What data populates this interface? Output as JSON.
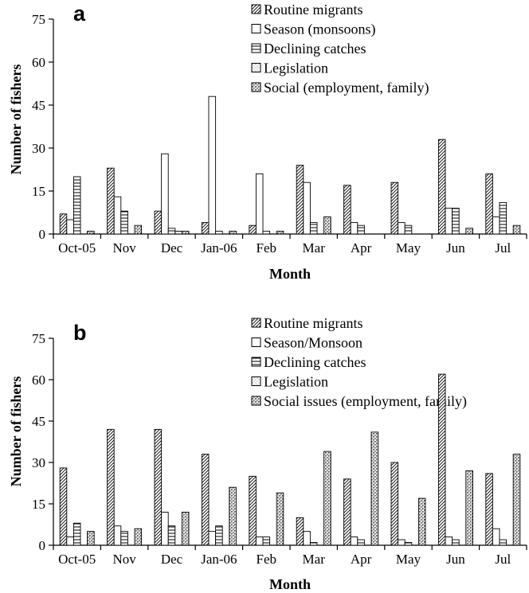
{
  "chart_data": [
    {
      "type": "bar",
      "panel_label": "a",
      "xlabel": "Month",
      "ylabel": "Number of fishers",
      "ylim": [
        0,
        75
      ],
      "yticks": [
        0,
        15,
        30,
        45,
        60,
        75
      ],
      "grid": false,
      "legend_position": "top",
      "categories": [
        "Oct-05",
        "Nov",
        "Dec",
        "Jan-06",
        "Feb",
        "Mar",
        "Apr",
        "May",
        "Jun",
        "Jul"
      ],
      "series": [
        {
          "name": "Routine migrants",
          "pattern": "diagonal",
          "values": [
            7,
            23,
            8,
            4,
            3,
            24,
            17,
            18,
            33,
            21
          ]
        },
        {
          "name": "Season (monsoons)",
          "pattern": "empty",
          "values": [
            5,
            13,
            28,
            48,
            21,
            18,
            4,
            4,
            9,
            6
          ]
        },
        {
          "name": "Declining catches",
          "pattern": "horizontal",
          "values": [
            20,
            8,
            2,
            1,
            1,
            4,
            3,
            3,
            9,
            11
          ]
        },
        {
          "name": "Legislation",
          "pattern": "dots",
          "values": [
            0,
            0,
            1,
            0,
            0,
            0,
            0,
            0,
            0,
            0
          ]
        },
        {
          "name": "Social (employment, family)",
          "pattern": "checker",
          "values": [
            1,
            3,
            1,
            1,
            1,
            6,
            0,
            0,
            2,
            3
          ]
        }
      ]
    },
    {
      "type": "bar",
      "panel_label": "b",
      "xlabel": "Month",
      "ylabel": "Number of fishers",
      "ylim": [
        0,
        75
      ],
      "yticks": [
        0,
        15,
        30,
        45,
        60,
        75
      ],
      "grid": false,
      "legend_position": "top",
      "categories": [
        "Oct-05",
        "Nov",
        "Dec",
        "Jan-06",
        "Feb",
        "Mar",
        "Apr",
        "May",
        "Jun",
        "Jul"
      ],
      "series": [
        {
          "name": "Routine migrants",
          "pattern": "diagonal",
          "values": [
            28,
            42,
            42,
            33,
            25,
            10,
            24,
            30,
            62,
            26
          ]
        },
        {
          "name": "Season/Monsoon",
          "pattern": "empty",
          "values": [
            3,
            7,
            12,
            5,
            3,
            5,
            3,
            2,
            3,
            6
          ]
        },
        {
          "name": "Declining catches",
          "pattern": "horizontal",
          "values": [
            8,
            5,
            7,
            7,
            3,
            1,
            2,
            1,
            2,
            2
          ]
        },
        {
          "name": "Legislation",
          "pattern": "dots",
          "values": [
            0,
            0,
            0,
            0,
            0,
            0,
            0,
            0,
            0,
            0
          ]
        },
        {
          "name": "Social issues (employment, family)",
          "pattern": "checker",
          "values": [
            5,
            6,
            12,
            21,
            19,
            34,
            41,
            17,
            27,
            33
          ]
        }
      ]
    }
  ]
}
